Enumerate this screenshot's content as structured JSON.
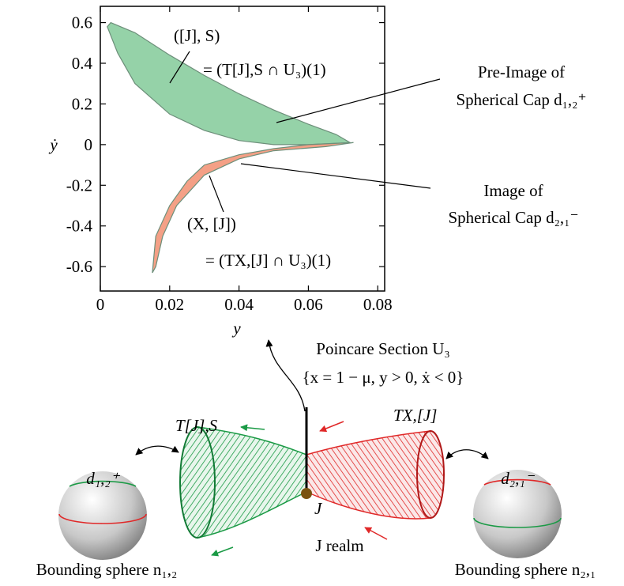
{
  "chart_data": {
    "type": "area",
    "x_label": "y",
    "y_label": "ẏ",
    "xlim": [
      0,
      0.082
    ],
    "ylim": [
      -0.72,
      0.68
    ],
    "xticks": [
      0,
      0.02,
      0.04,
      0.06,
      0.08
    ],
    "yticks": [
      0.6,
      0.4,
      0.2,
      0,
      -0.2,
      -0.4,
      -0.6
    ],
    "series": [
      {
        "color": "#8fd0a3",
        "x": [
          0.003,
          0.01,
          0.02,
          0.03,
          0.04,
          0.05,
          0.06,
          0.068,
          0.072,
          0.06,
          0.05,
          0.04,
          0.03,
          0.02,
          0.01,
          0.005,
          0.002
        ],
        "values": [
          0.6,
          0.55,
          0.44,
          0.34,
          0.25,
          0.17,
          0.1,
          0.05,
          0.01,
          0.0,
          0.0,
          0.02,
          0.07,
          0.15,
          0.3,
          0.45,
          0.58
        ]
      },
      {
        "color": "#f39b7f",
        "x": [
          0.015,
          0.016,
          0.02,
          0.025,
          0.03,
          0.04,
          0.05,
          0.06,
          0.073,
          0.065,
          0.05,
          0.04,
          0.03,
          0.022,
          0.018,
          0.016
        ],
        "values": [
          -0.63,
          -0.45,
          -0.3,
          -0.18,
          -0.1,
          -0.05,
          -0.02,
          0.0,
          0.01,
          -0.01,
          -0.03,
          -0.07,
          -0.15,
          -0.3,
          -0.45,
          -0.6
        ]
      }
    ],
    "annotations": [
      "([J], S)",
      "= (T[J],S ∩ U₃)(1)",
      "(X, [J])",
      "= (TX,[J] ∩ U₃)(1)",
      "Pre-Image of",
      "Spherical Cap d₁,₂⁺",
      "Image of",
      "Spherical Cap d₂,₁⁻"
    ]
  },
  "diagram": {
    "section_title": "Poincare Section U₃",
    "section_condition": "{x = 1 − μ, y > 0, ẋ < 0}",
    "tube_left": "T[J],S",
    "tube_right": "TX,[J]",
    "point": "J",
    "realm": "J realm",
    "cap_left": "d₁,₂⁺",
    "cap_right": "d₂,₁⁻",
    "sphere_left": "Bounding sphere n₁,₂",
    "sphere_right": "Bounding sphere n₂,₁"
  }
}
